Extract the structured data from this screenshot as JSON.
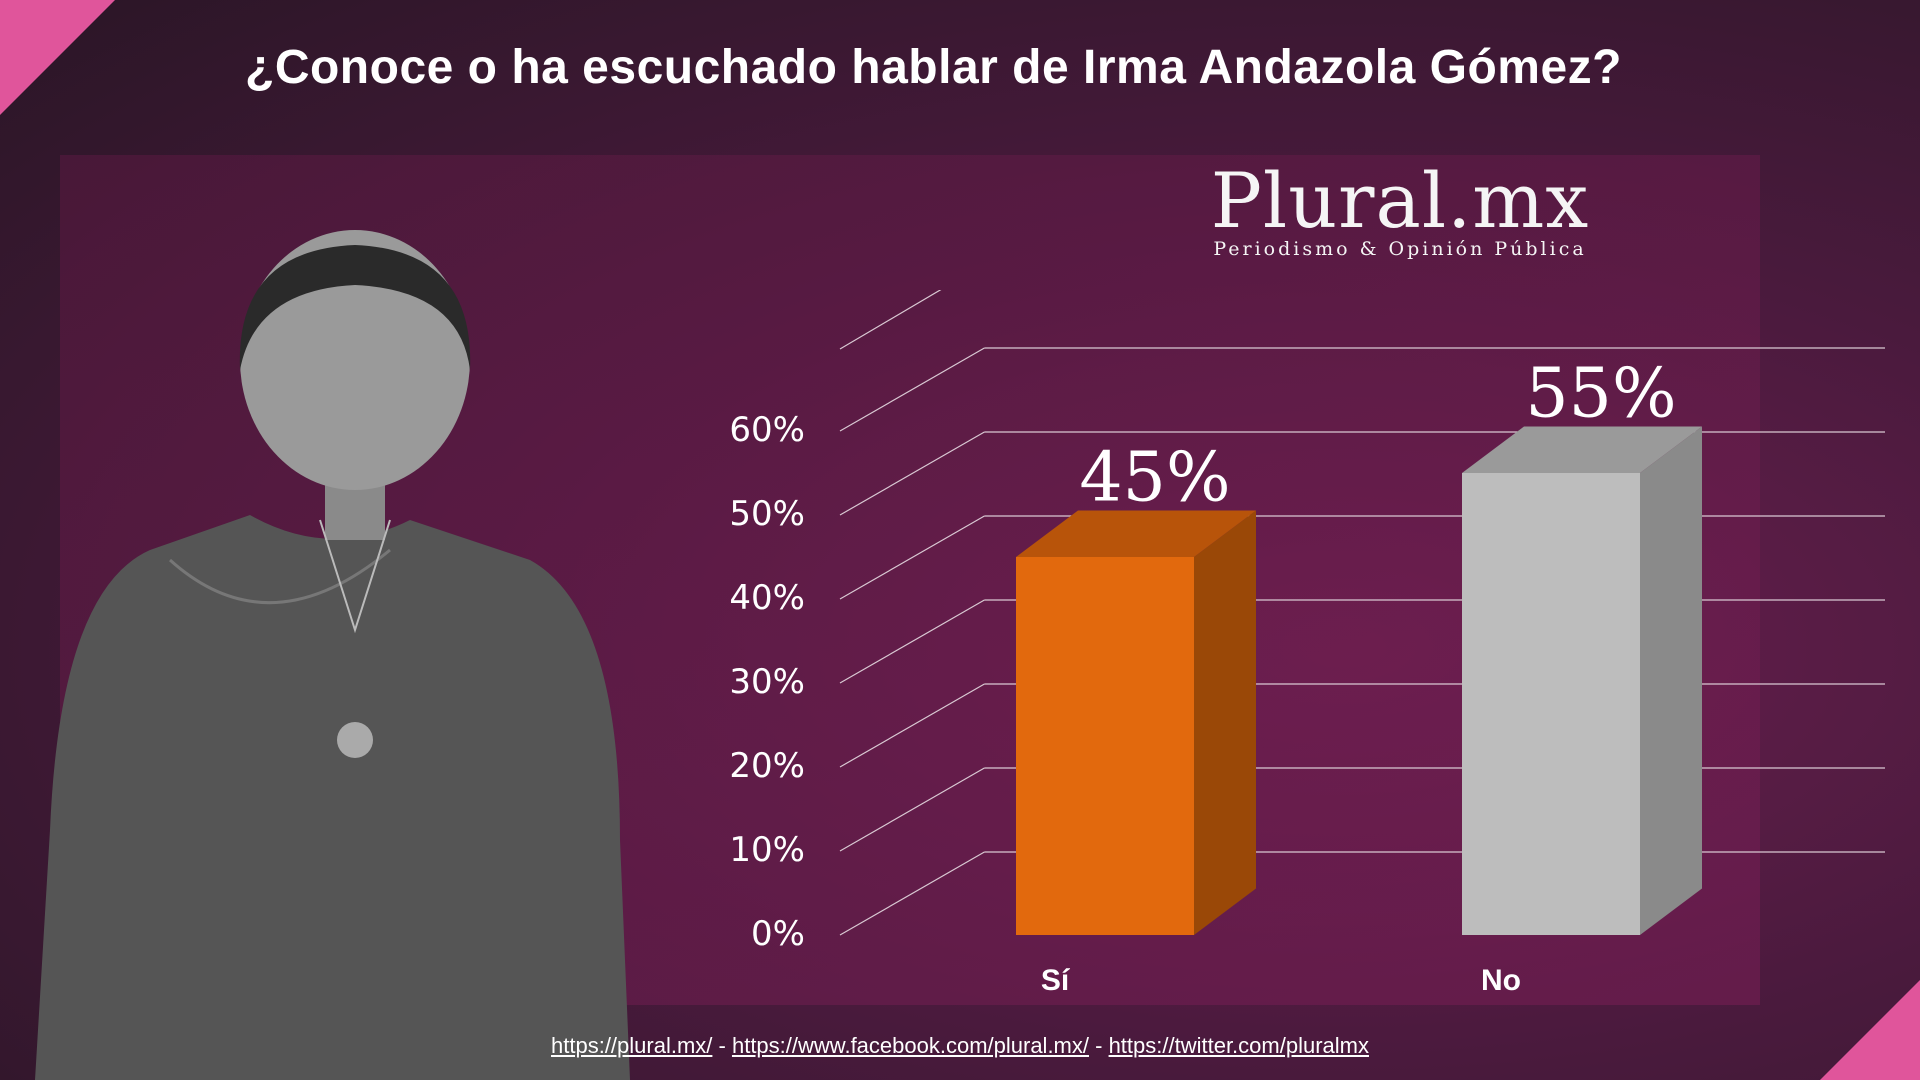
{
  "title": "¿Conoce o ha escuchado hablar de Irma Andazola Gómez?",
  "logo": {
    "name": "Plural.mx",
    "tagline": "Periodismo & Opinión Pública"
  },
  "footer": {
    "link1": "https://plural.mx/",
    "sep1": " - ",
    "link2": "https://www.facebook.com/plural.mx/",
    "sep2": " - ",
    "link3": "https://twitter.com/pluralmx"
  },
  "colors": {
    "accent": "#e0559b",
    "bar_si": "#e2690d",
    "bar_no": "#bdbdbd"
  },
  "chart_data": {
    "type": "bar",
    "categories": [
      "Sí",
      "No"
    ],
    "values": [
      45,
      55
    ],
    "data_labels": [
      "45%",
      "55%"
    ],
    "yticks": [
      "0%",
      "10%",
      "20%",
      "30%",
      "40%",
      "50%",
      "60%"
    ],
    "ylim": [
      0,
      60
    ],
    "grid": true,
    "style": "3d-column"
  }
}
